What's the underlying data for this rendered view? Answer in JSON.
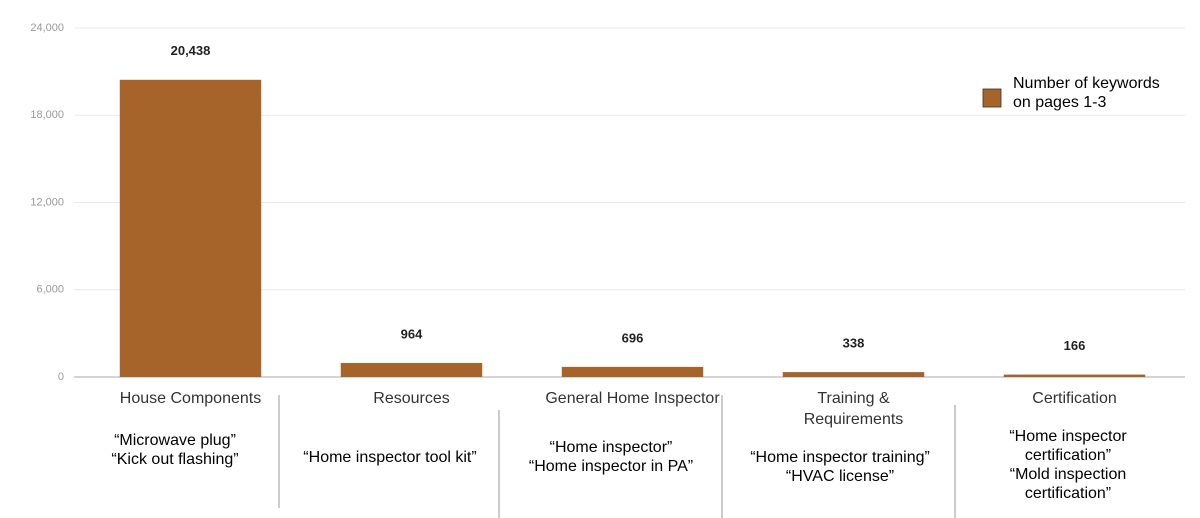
{
  "chart_data": {
    "type": "bar",
    "categories": [
      "House Components",
      "Resources",
      "General Home Inspector",
      "Training &\nRequirements",
      "Certification"
    ],
    "series": [
      {
        "name": "Number of keywords\non pages 1-3",
        "color": "#a6632a",
        "values": [
          20438,
          964,
          696,
          338,
          166
        ],
        "value_labels": [
          "20,438",
          "964",
          "696",
          "338",
          "166"
        ]
      }
    ],
    "ylim": [
      0,
      24000
    ],
    "yticks": [
      0,
      {
        "value": 6000,
        "label": "6,000"
      },
      {
        "value": 12000,
        "label": "12,000"
      },
      {
        "value": 18000,
        "label": "18,000"
      },
      {
        "value": 24000,
        "label": "24,000"
      }
    ],
    "grid": true,
    "legend": "top-right",
    "annotations": [
      "“Microwave plug”\n“Kick out flashing”",
      "“Home inspector tool kit”",
      "“Home inspector”\n“Home inspector in PA”",
      "“Home inspector training”\n“HVAC license”",
      "“Home inspector\ncertification”\n“Mold inspection\ncertification”"
    ]
  }
}
